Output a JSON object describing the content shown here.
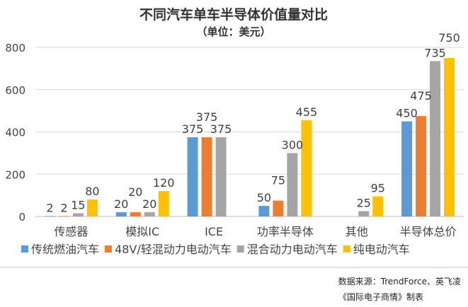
{
  "chart_data": {
    "type": "bar",
    "title": "不同汽车单车半导体价值量对比",
    "subtitle": "（单位：美元）",
    "xlabel": "",
    "ylabel": "",
    "ylim": [
      0,
      800
    ],
    "yticks": [
      0,
      200,
      400,
      600,
      800
    ],
    "grid": true,
    "legend_position": "bottom",
    "categories": [
      "传感器",
      "模拟IC",
      "ICE",
      "功率半导体",
      "其他",
      "半导体总价"
    ],
    "series": [
      {
        "name": "传统燃油汽车",
        "color": "#5B9BD5",
        "values": [
          2,
          20,
          375,
          50,
          null,
          450
        ]
      },
      {
        "name": "48V/轻混动力电动汽车",
        "color": "#ED7D31",
        "values": [
          2,
          20,
          375,
          75,
          null,
          475
        ]
      },
      {
        "name": "混合动力电动汽车",
        "color": "#A5A5A5",
        "values": [
          15,
          20,
          375,
          300,
          25,
          735
        ]
      },
      {
        "name": "纯电动汽车",
        "color": "#FFC000",
        "values": [
          80,
          120,
          null,
          455,
          95,
          750
        ]
      }
    ]
  },
  "footer": {
    "source": "数据来源：TrendForce、英飞凌",
    "credit": "《国际电子商情》制表"
  }
}
